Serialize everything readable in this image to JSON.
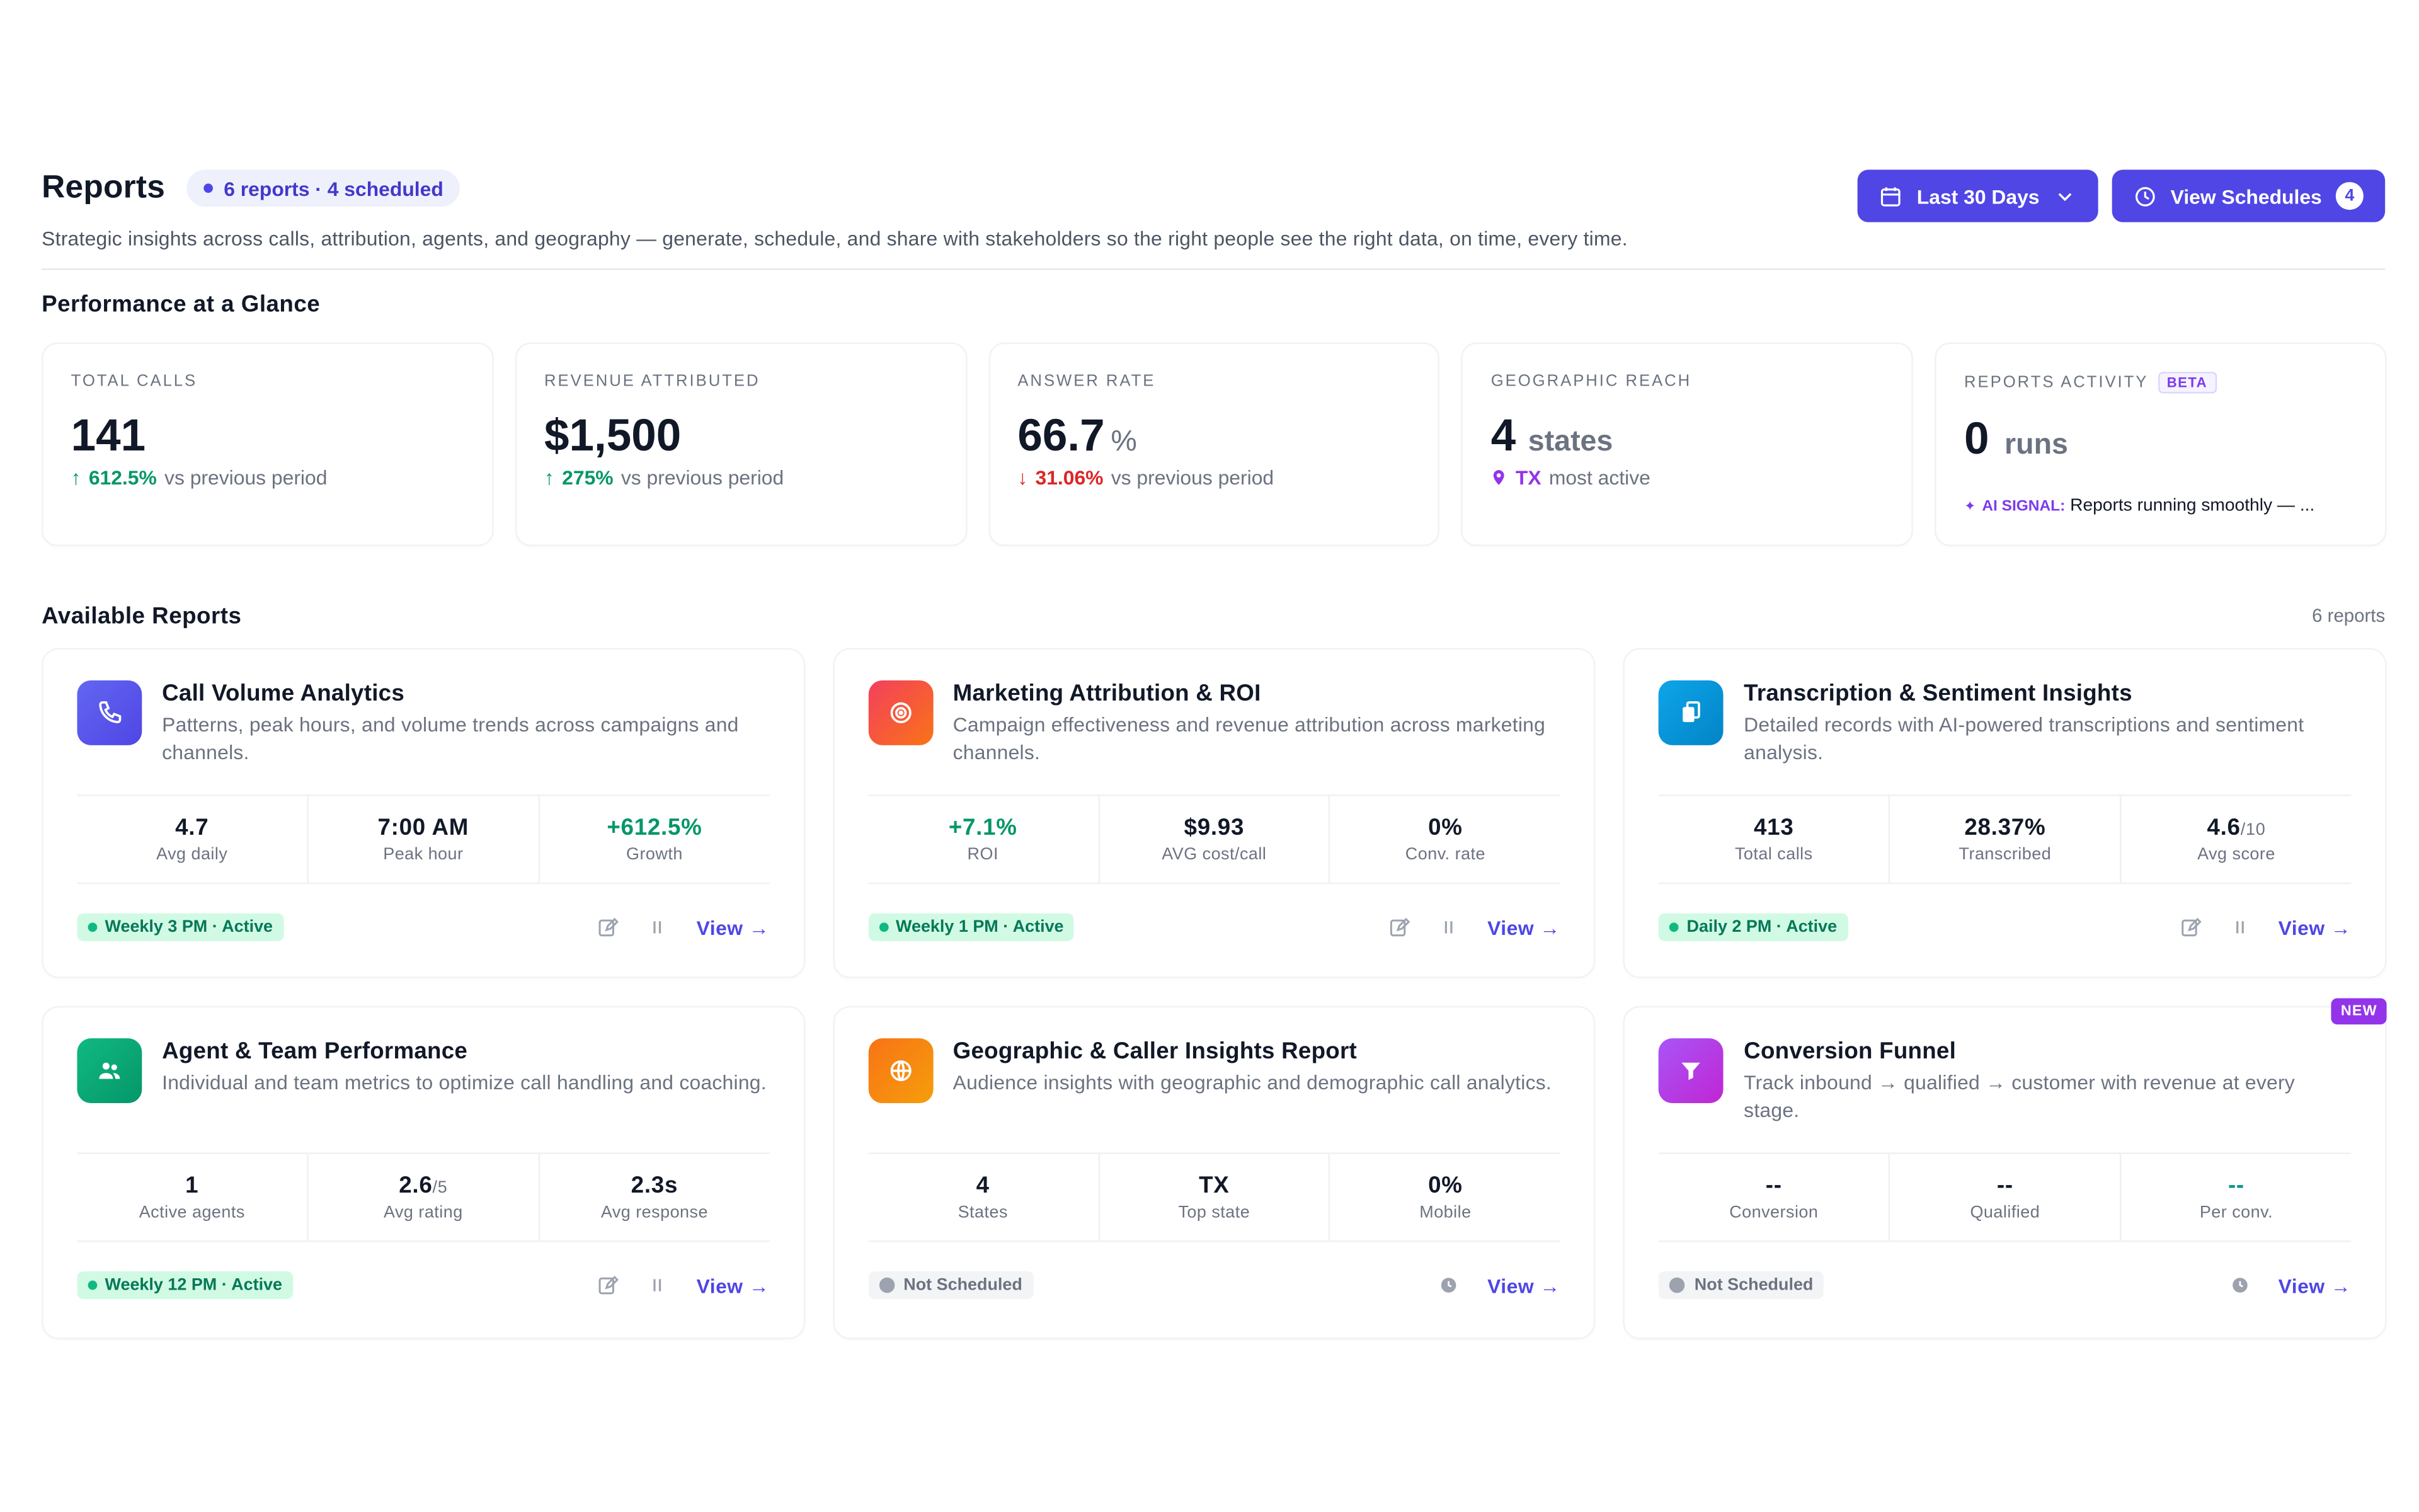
{
  "header": {
    "title": "Reports",
    "pill": "6 reports · 4 scheduled",
    "subtitle": "Strategic insights across calls, attribution, agents, and geography — generate, schedule, and share with stakeholders so the right people see the right data, on time, every time.",
    "date_range": "Last 30 Days",
    "view_schedules": "View Schedules",
    "schedules_count": "4"
  },
  "glance": {
    "title": "Performance at a Glance",
    "stats": [
      {
        "label": "TOTAL CALLS",
        "value": "141",
        "delta": "612.5%",
        "delta_text": "vs previous period",
        "direction": "up"
      },
      {
        "label": "REVENUE ATTRIBUTED",
        "value": "$1,500",
        "delta": "275%",
        "delta_text": "vs previous period",
        "direction": "up"
      },
      {
        "label": "ANSWER RATE",
        "value": "66.7",
        "unit": "%",
        "delta": "31.06%",
        "delta_text": "vs previous period",
        "direction": "down"
      },
      {
        "label": "GEOGRAPHIC REACH",
        "value": "4",
        "unit": "states",
        "highlight": "TX",
        "delta_text": "most active"
      },
      {
        "label": "REPORTS ACTIVITY",
        "badge": "BETA",
        "value": "0",
        "unit": "runs",
        "signal_label": "AI SIGNAL:",
        "signal_text": "Reports running smoothly — ..."
      }
    ]
  },
  "reports": {
    "title": "Available Reports",
    "count": "6 reports",
    "view_label": "View →",
    "cards": [
      {
        "title": "Call Volume Analytics",
        "desc": "Patterns, peak hours, and volume trends across campaigns and channels.",
        "icon": "phone-icon",
        "color": "#5b5cf0",
        "metrics": [
          {
            "value": "4.7",
            "label": "Avg daily"
          },
          {
            "value": "7:00 AM",
            "label": "Peak hour"
          },
          {
            "value": "+612.5%",
            "label": "Growth"
          }
        ],
        "schedule": "Weekly 3 PM · Active"
      },
      {
        "title": "Marketing Attribution & ROI",
        "desc": "Campaign effectiveness and revenue attribution across marketing channels.",
        "icon": "target-icon",
        "color": "#f43f5e",
        "metrics": [
          {
            "value": "+7.1%",
            "label": "ROI"
          },
          {
            "value": "$9.93",
            "label": "AVG cost/call"
          },
          {
            "value": "0%",
            "label": "Conv. rate"
          }
        ],
        "schedule": "Weekly 1 PM · Active"
      },
      {
        "title": "Transcription & Sentiment Insights",
        "desc": "Detailed records with AI-powered transcriptions and sentiment analysis.",
        "icon": "documents-icon",
        "color": "#0ea5e9",
        "metrics": [
          {
            "value": "413",
            "label": "Total calls"
          },
          {
            "value": "28.37%",
            "label": "Transcribed"
          },
          {
            "value": "4.6",
            "sub": "/10",
            "label": "Avg score"
          }
        ],
        "schedule": "Daily 2 PM · Active"
      },
      {
        "title": "Agent & Team Performance",
        "desc": "Individual and team metrics to optimize call handling and coaching.",
        "icon": "team-icon",
        "color": "#10b981",
        "metrics": [
          {
            "value": "1",
            "label": "Active agents"
          },
          {
            "value": "2.6",
            "sub": "/5",
            "label": "Avg rating"
          },
          {
            "value": "2.3s",
            "label": "Avg response"
          }
        ],
        "schedule": "Weekly 12 PM · Active"
      },
      {
        "title": "Geographic & Caller Insights Report",
        "desc": "Audience insights with geographic and demographic call analytics.",
        "icon": "globe-icon",
        "color": "#f97316",
        "metrics": [
          {
            "value": "4",
            "label": "States"
          },
          {
            "value": "TX",
            "label": "Top state"
          },
          {
            "value": "0%",
            "label": "Mobile"
          }
        ],
        "schedule": "Not Scheduled"
      },
      {
        "title": "Conversion Funnel",
        "desc": "Track inbound → qualified → customer with revenue at every stage.",
        "icon": "funnel-icon",
        "color": "#c026d3",
        "badge": "NEW",
        "metrics": [
          {
            "value": "--",
            "label": "Conversion"
          },
          {
            "value": "--",
            "label": "Qualified"
          },
          {
            "value": "--",
            "label": "Per conv."
          }
        ],
        "schedule": "Not Scheduled"
      }
    ]
  }
}
